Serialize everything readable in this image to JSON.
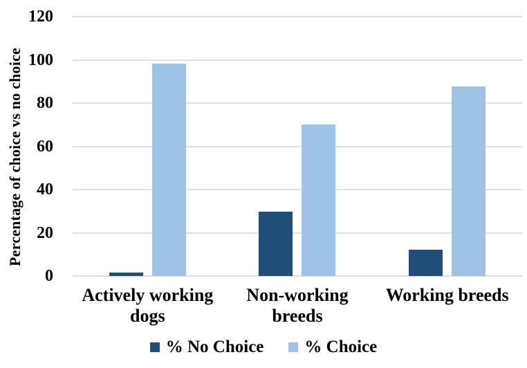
{
  "chart_data": {
    "type": "bar",
    "title": "",
    "ylabel": "Percentage of choice vs no choice",
    "xlabel": "",
    "ylim": [
      0,
      120
    ],
    "yticks": [
      0,
      20,
      40,
      60,
      80,
      100,
      120
    ],
    "grid": true,
    "legend_position": "bottom",
    "categories": [
      "Actively working\ndogs",
      "Non-working\nbreeds",
      "Working breeds"
    ],
    "series": [
      {
        "name": "% No Choice",
        "color": "#1F4E79",
        "values": [
          1.6,
          29.8,
          12.3
        ]
      },
      {
        "name": "% Choice",
        "color": "#9DC3E6",
        "values": [
          98.3,
          70.2,
          87.7
        ]
      }
    ],
    "colors": {
      "gridline": "#DEDEDE",
      "text": "#000000",
      "background": "#FFFFFF"
    }
  }
}
